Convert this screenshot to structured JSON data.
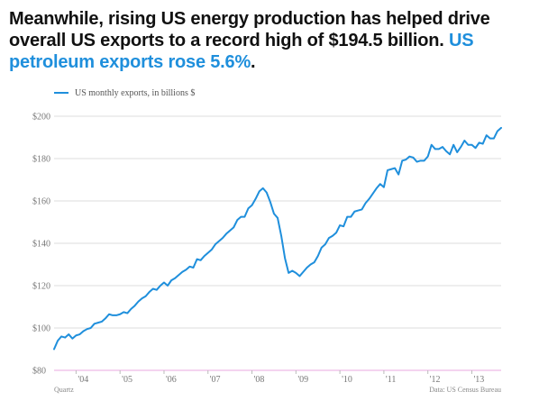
{
  "headline": {
    "main": "Meanwhile, rising US energy production has helped drive overall US exports to a record high of $194.5 billion. ",
    "accent": "US petroleum exports rose 5.6%",
    "end": "."
  },
  "legend": {
    "label": "US monthly exports, in billions $"
  },
  "colors": {
    "line": "#1f8fdc",
    "grid": "#dddddd",
    "baseline": "#e9a9e0",
    "accent": "#1f8fdc"
  },
  "footer": {
    "source": "Data: US Census Bureau",
    "brand": "Quartz"
  },
  "chart_data": {
    "type": "line",
    "title": "",
    "xlabel": "",
    "ylabel": "",
    "xlim": [
      "2003-07",
      "2013-09"
    ],
    "ylim": [
      80,
      200
    ],
    "y_ticks": [
      80,
      100,
      120,
      140,
      160,
      180,
      200
    ],
    "y_tick_labels": [
      "$80",
      "$100",
      "$120",
      "$140",
      "$160",
      "$180",
      "$200"
    ],
    "x_ticks": [
      "2004-01",
      "2005-01",
      "2006-01",
      "2007-01",
      "2008-01",
      "2009-01",
      "2010-01",
      "2011-01",
      "2012-01",
      "2013-01"
    ],
    "x_tick_labels": [
      "'04",
      "'05",
      "'06",
      "'07",
      "'08",
      "'09",
      "'10",
      "'11",
      "'12",
      "'13"
    ],
    "grid": true,
    "legend_position": "top-left",
    "series": [
      {
        "name": "US monthly exports, in billions $",
        "points": [
          [
            "2003-07",
            90
          ],
          [
            "2003-08",
            94
          ],
          [
            "2003-09",
            96
          ],
          [
            "2003-10",
            95.5
          ],
          [
            "2003-11",
            97
          ],
          [
            "2003-12",
            95
          ],
          [
            "2004-01",
            96.5
          ],
          [
            "2004-02",
            97
          ],
          [
            "2004-03",
            98.5
          ],
          [
            "2004-04",
            99.5
          ],
          [
            "2004-05",
            100
          ],
          [
            "2004-06",
            102
          ],
          [
            "2004-07",
            102.5
          ],
          [
            "2004-08",
            103
          ],
          [
            "2004-09",
            104.5
          ],
          [
            "2004-10",
            106.5
          ],
          [
            "2004-11",
            106
          ],
          [
            "2004-12",
            106
          ],
          [
            "2005-01",
            106.5
          ],
          [
            "2005-02",
            107.5
          ],
          [
            "2005-03",
            107
          ],
          [
            "2005-04",
            109
          ],
          [
            "2005-05",
            110.5
          ],
          [
            "2005-06",
            112.5
          ],
          [
            "2005-07",
            114
          ],
          [
            "2005-08",
            115
          ],
          [
            "2005-09",
            117
          ],
          [
            "2005-10",
            118.5
          ],
          [
            "2005-11",
            118
          ],
          [
            "2005-12",
            120
          ],
          [
            "2006-01",
            121.5
          ],
          [
            "2006-02",
            120
          ],
          [
            "2006-03",
            122.5
          ],
          [
            "2006-04",
            123.5
          ],
          [
            "2006-05",
            125
          ],
          [
            "2006-06",
            126.5
          ],
          [
            "2006-07",
            127.5
          ],
          [
            "2006-08",
            129
          ],
          [
            "2006-09",
            128.5
          ],
          [
            "2006-10",
            132.5
          ],
          [
            "2006-11",
            132
          ],
          [
            "2006-12",
            134
          ],
          [
            "2007-01",
            135.5
          ],
          [
            "2007-02",
            137
          ],
          [
            "2007-03",
            139.5
          ],
          [
            "2007-04",
            141
          ],
          [
            "2007-05",
            142.5
          ],
          [
            "2007-06",
            144.5
          ],
          [
            "2007-07",
            146
          ],
          [
            "2007-08",
            147.5
          ],
          [
            "2007-09",
            151
          ],
          [
            "2007-10",
            152.5
          ],
          [
            "2007-11",
            152.5
          ],
          [
            "2007-12",
            156.5
          ],
          [
            "2008-01",
            158
          ],
          [
            "2008-02",
            161
          ],
          [
            "2008-03",
            164.5
          ],
          [
            "2008-04",
            166
          ],
          [
            "2008-05",
            164
          ],
          [
            "2008-06",
            159.5
          ],
          [
            "2008-07",
            154
          ],
          [
            "2008-08",
            152
          ],
          [
            "2008-09",
            143.5
          ],
          [
            "2008-10",
            133
          ],
          [
            "2008-11",
            126
          ],
          [
            "2008-12",
            127
          ],
          [
            "2009-01",
            126
          ],
          [
            "2009-02",
            124.5
          ],
          [
            "2009-03",
            126.5
          ],
          [
            "2009-04",
            128.5
          ],
          [
            "2009-05",
            130
          ],
          [
            "2009-06",
            131
          ],
          [
            "2009-07",
            134
          ],
          [
            "2009-08",
            138
          ],
          [
            "2009-09",
            139.5
          ],
          [
            "2009-10",
            142.5
          ],
          [
            "2009-11",
            143.5
          ],
          [
            "2009-12",
            145
          ],
          [
            "2010-01",
            148.5
          ],
          [
            "2010-02",
            148
          ],
          [
            "2010-03",
            152.5
          ],
          [
            "2010-04",
            152.5
          ],
          [
            "2010-05",
            155
          ],
          [
            "2010-06",
            155.5
          ],
          [
            "2010-07",
            156
          ],
          [
            "2010-08",
            159
          ],
          [
            "2010-09",
            161
          ],
          [
            "2010-10",
            163.5
          ],
          [
            "2010-11",
            166
          ],
          [
            "2010-12",
            168
          ],
          [
            "2011-01",
            166.5
          ],
          [
            "2011-02",
            174.5
          ],
          [
            "2011-03",
            175
          ],
          [
            "2011-04",
            175.5
          ],
          [
            "2011-05",
            172.5
          ],
          [
            "2011-06",
            179
          ],
          [
            "2011-07",
            179.5
          ],
          [
            "2011-08",
            181
          ],
          [
            "2011-09",
            180.5
          ],
          [
            "2011-10",
            178.5
          ],
          [
            "2011-11",
            179
          ],
          [
            "2011-12",
            179
          ],
          [
            "2012-01",
            181
          ],
          [
            "2012-02",
            186.5
          ],
          [
            "2012-03",
            184.5
          ],
          [
            "2012-04",
            184.5
          ],
          [
            "2012-05",
            185.5
          ],
          [
            "2012-06",
            183.5
          ],
          [
            "2012-07",
            182
          ],
          [
            "2012-08",
            186.5
          ],
          [
            "2012-09",
            183
          ],
          [
            "2012-10",
            185.5
          ],
          [
            "2012-11",
            188.5
          ],
          [
            "2012-12",
            186.5
          ],
          [
            "2013-01",
            186.5
          ],
          [
            "2013-02",
            185
          ],
          [
            "2013-03",
            187.5
          ],
          [
            "2013-04",
            187
          ],
          [
            "2013-05",
            191
          ],
          [
            "2013-06",
            189.5
          ],
          [
            "2013-07",
            189.5
          ],
          [
            "2013-08",
            193
          ],
          [
            "2013-09",
            194.5
          ]
        ]
      }
    ]
  }
}
